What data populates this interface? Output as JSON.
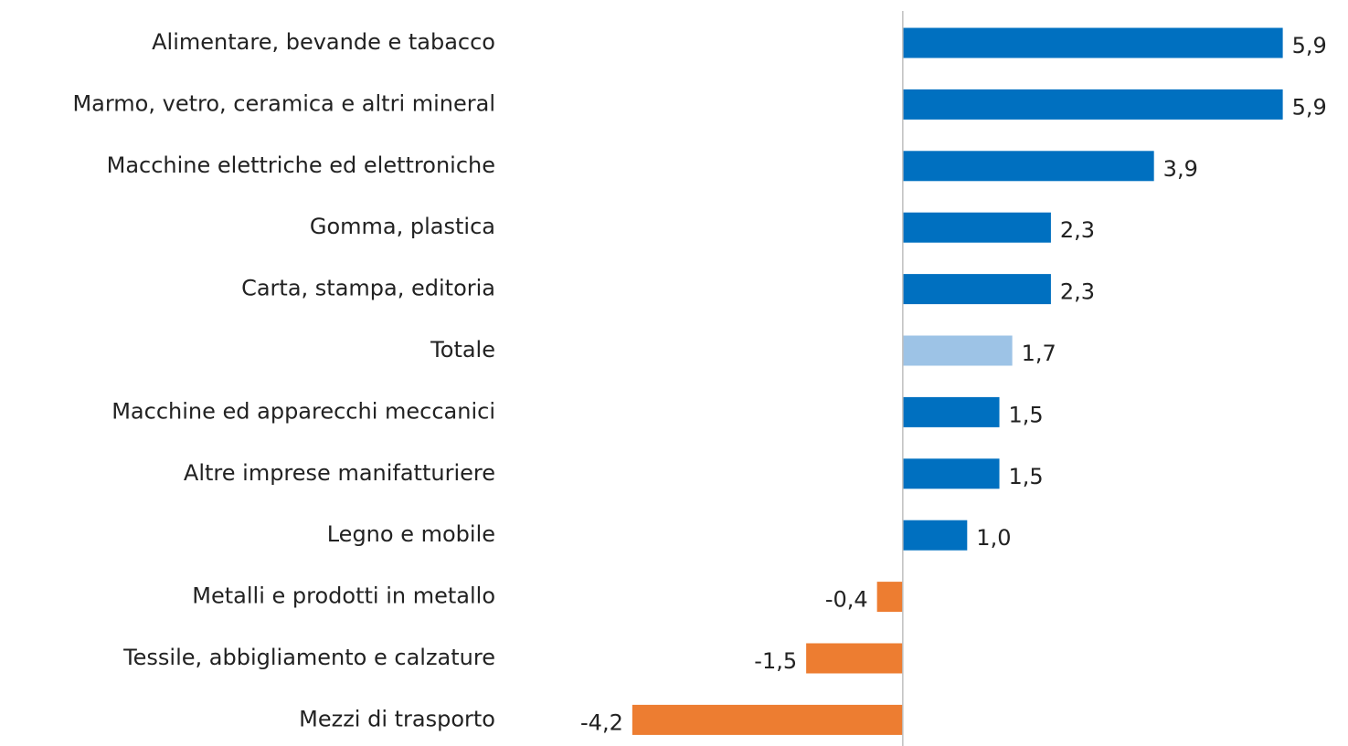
{
  "chart_data": {
    "type": "barh",
    "categories": [
      "Alimentare, bevande e tabacco",
      "Marmo, vetro, ceramica e altri mineral",
      "Macchine elettriche ed elettroniche",
      "Gomma, plastica",
      "Carta, stampa, editoria",
      "Totale",
      "Macchine ed apparecchi meccanici",
      "Altre imprese manifatturiere",
      "Legno e mobile",
      "Metalli e prodotti in metallo",
      "Tessile, abbigliamento e calzature",
      "Mezzi di trasporto"
    ],
    "values": [
      5.9,
      5.9,
      3.9,
      2.3,
      2.3,
      1.7,
      1.5,
      1.5,
      1.0,
      -0.4,
      -1.5,
      -4.2
    ],
    "value_labels": [
      "5,9",
      "5,9",
      "3,9",
      "2,3",
      "2,3",
      "1,7",
      "1,5",
      "1,5",
      "1,0",
      "-0,4",
      "-1,5",
      "-4,2"
    ],
    "colors": [
      "#0070c0",
      "#0070c0",
      "#0070c0",
      "#0070c0",
      "#0070c0",
      "#9dc3e6",
      "#0070c0",
      "#0070c0",
      "#0070c0",
      "#ed7d31",
      "#ed7d31",
      "#ed7d31"
    ],
    "xlim": [
      -6,
      6.7
    ]
  }
}
